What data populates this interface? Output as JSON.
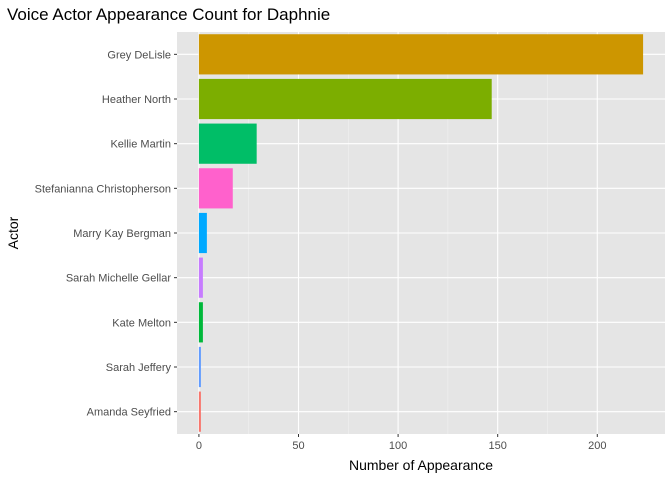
{
  "chart_data": {
    "type": "bar",
    "orientation": "horizontal",
    "title": "Voice Actor Appearance Count for Daphnie",
    "xlabel": "Number of Appearance",
    "ylabel": "Actor",
    "xlim": [
      -11,
      234
    ],
    "xticks": [
      0,
      50,
      100,
      150,
      200
    ],
    "categories": [
      "Grey DeLisle",
      "Heather North",
      "Kellie Martin",
      "Stefanianna Christopherson",
      "Marry Kay Bergman",
      "Sarah Michelle Gellar",
      "Kate Melton",
      "Sarah Jeffery",
      "Amanda Seyfried"
    ],
    "values": [
      223,
      147,
      29,
      17,
      4,
      2,
      2,
      1,
      1
    ],
    "colors": [
      "#CD9600",
      "#7CAE00",
      "#00BE67",
      "#FF61CC",
      "#00A9FF",
      "#C77CFF",
      "#00B83A",
      "#619CFF",
      "#F8766D"
    ],
    "panel_background": "#e5e5e5",
    "grid": true,
    "legend": "none"
  }
}
